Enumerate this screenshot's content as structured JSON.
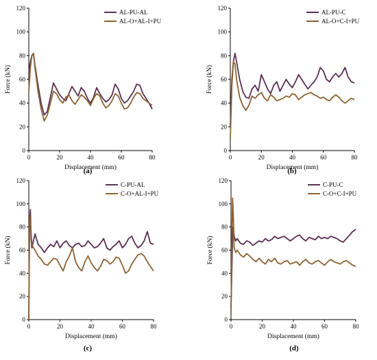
{
  "colors": {
    "series_a": "#5a2e50",
    "series_b": "#8b6232",
    "axis": "#000000",
    "glow": "#f7c9ec"
  },
  "chart_data": [
    {
      "panel": "(a)",
      "type": "line",
      "xlabel": "Displacement (mm)",
      "ylabel": "Force (kN)",
      "xlim": [
        0,
        80
      ],
      "ylim": [
        0,
        120
      ],
      "xticks": [
        0,
        20,
        40,
        60,
        80
      ],
      "yticks": [
        0,
        20,
        40,
        60,
        80,
        100,
        120
      ],
      "legend": "top-right",
      "series": [
        {
          "name": "AL-PU-AL",
          "x": [
            0,
            1,
            2,
            3,
            4,
            6,
            8,
            10,
            12,
            14,
            16,
            18,
            20,
            22,
            24,
            26,
            28,
            30,
            32,
            34,
            36,
            38,
            40,
            42,
            44,
            46,
            48,
            50,
            52,
            54,
            56,
            58,
            60,
            62,
            64,
            66,
            68,
            70,
            72,
            74,
            76,
            78,
            80
          ],
          "y": [
            65,
            75,
            80,
            82,
            72,
            55,
            40,
            30,
            33,
            45,
            57,
            52,
            47,
            44,
            42,
            48,
            54,
            50,
            46,
            53,
            50,
            44,
            40,
            45,
            53,
            48,
            44,
            41,
            43,
            47,
            56,
            52,
            44,
            40,
            42,
            46,
            50,
            56,
            55,
            48,
            44,
            40,
            35
          ]
        },
        {
          "name": "AL-O+AL-I+PU",
          "x": [
            0,
            1,
            2,
            3,
            4,
            6,
            8,
            10,
            12,
            14,
            16,
            18,
            20,
            22,
            24,
            26,
            28,
            30,
            32,
            34,
            36,
            38,
            40,
            42,
            44,
            46,
            48,
            50,
            52,
            54,
            56,
            58,
            60,
            62,
            64,
            66,
            68,
            70,
            72,
            74,
            76,
            78,
            80
          ],
          "y": [
            50,
            70,
            80,
            82,
            70,
            50,
            35,
            25,
            30,
            40,
            50,
            48,
            43,
            40,
            45,
            47,
            42,
            39,
            43,
            47,
            45,
            42,
            38,
            44,
            48,
            46,
            40,
            36,
            38,
            42,
            48,
            46,
            40,
            35,
            36,
            40,
            45,
            49,
            48,
            44,
            42,
            40,
            38
          ]
        }
      ]
    },
    {
      "panel": "(b)",
      "type": "line",
      "xlabel": "Displacement (mm)",
      "ylabel": "Force (kN)",
      "xlim": [
        0,
        80
      ],
      "ylim": [
        0,
        120
      ],
      "xticks": [
        0,
        20,
        40,
        60,
        80
      ],
      "yticks": [
        0,
        20,
        40,
        60,
        80,
        100,
        120
      ],
      "legend": "top-right",
      "series": [
        {
          "name": "AL-PU-C",
          "x": [
            0,
            1,
            2,
            3,
            4,
            6,
            8,
            10,
            12,
            14,
            16,
            18,
            20,
            22,
            24,
            26,
            28,
            30,
            32,
            34,
            36,
            38,
            40,
            42,
            44,
            46,
            48,
            50,
            52,
            54,
            56,
            58,
            60,
            62,
            64,
            66,
            68,
            70,
            72,
            74,
            76,
            78,
            80
          ],
          "y": [
            20,
            60,
            75,
            82,
            75,
            60,
            50,
            45,
            44,
            52,
            55,
            50,
            64,
            58,
            52,
            48,
            55,
            58,
            50,
            55,
            60,
            56,
            53,
            58,
            64,
            60,
            56,
            52,
            55,
            58,
            62,
            70,
            67,
            60,
            58,
            62,
            65,
            62,
            65,
            70,
            62,
            58,
            57
          ]
        },
        {
          "name": "AL-O+C-I+PU",
          "x": [
            0,
            1,
            2,
            3,
            4,
            6,
            8,
            10,
            12,
            14,
            16,
            18,
            20,
            22,
            24,
            26,
            28,
            30,
            32,
            34,
            36,
            38,
            40,
            42,
            44,
            46,
            48,
            50,
            52,
            54,
            56,
            58,
            60,
            62,
            64,
            66,
            68,
            70,
            72,
            74,
            76,
            78,
            80
          ],
          "y": [
            10,
            55,
            75,
            73,
            60,
            45,
            38,
            34,
            38,
            46,
            44,
            47,
            49,
            44,
            42,
            47,
            45,
            42,
            43,
            44,
            46,
            45,
            48,
            47,
            43,
            45,
            47,
            48,
            49,
            47,
            46,
            44,
            45,
            43,
            42,
            45,
            47,
            45,
            42,
            40,
            42,
            44,
            43
          ]
        }
      ]
    },
    {
      "panel": "(c)",
      "type": "line",
      "xlabel": "Displacement (mm)",
      "ylabel": "Force (kN)",
      "xlim": [
        0,
        80
      ],
      "ylim": [
        0,
        120
      ],
      "xticks": [
        0,
        20,
        40,
        60,
        80
      ],
      "yticks": [
        0,
        20,
        40,
        60,
        80,
        100,
        120
      ],
      "legend": "top-right",
      "series": [
        {
          "name": "C-PU-AL",
          "x": [
            0,
            0.5,
            1,
            1.5,
            2,
            3,
            4,
            6,
            8,
            10,
            12,
            14,
            16,
            18,
            20,
            22,
            24,
            26,
            28,
            30,
            32,
            34,
            36,
            38,
            40,
            42,
            44,
            46,
            48,
            50,
            52,
            54,
            56,
            58,
            60,
            62,
            64,
            66,
            68,
            70,
            72,
            74,
            76,
            78,
            80
          ],
          "y": [
            0,
            80,
            95,
            70,
            62,
            68,
            74,
            65,
            62,
            58,
            62,
            65,
            63,
            68,
            62,
            66,
            68,
            64,
            62,
            65,
            66,
            63,
            64,
            68,
            65,
            62,
            63,
            66,
            70,
            62,
            60,
            63,
            65,
            68,
            62,
            65,
            70,
            72,
            66,
            62,
            64,
            68,
            76,
            66,
            65
          ]
        },
        {
          "name": "C-O+AL-I+PU",
          "x": [
            0,
            0.5,
            1,
            1.5,
            2,
            3,
            4,
            6,
            8,
            10,
            12,
            14,
            16,
            18,
            20,
            22,
            24,
            26,
            28,
            30,
            32,
            34,
            36,
            38,
            40,
            42,
            44,
            46,
            48,
            50,
            52,
            54,
            56,
            58,
            60,
            62,
            64,
            66,
            68,
            70,
            72,
            74,
            76,
            78,
            80
          ],
          "y": [
            0,
            90,
            85,
            75,
            65,
            62,
            60,
            55,
            52,
            48,
            47,
            50,
            53,
            52,
            47,
            42,
            50,
            55,
            62,
            50,
            45,
            42,
            50,
            55,
            49,
            45,
            42,
            46,
            52,
            51,
            48,
            50,
            54,
            53,
            47,
            40,
            42,
            48,
            52,
            56,
            57,
            55,
            50,
            46,
            42
          ]
        }
      ]
    },
    {
      "panel": "(d)",
      "type": "line",
      "xlabel": "Displacement (mm)",
      "ylabel": "Force (kN)",
      "xlim": [
        0,
        80
      ],
      "ylim": [
        0,
        120
      ],
      "xticks": [
        0,
        20,
        40,
        60,
        80
      ],
      "yticks": [
        0,
        20,
        40,
        60,
        80,
        100,
        120
      ],
      "legend": "top-right",
      "series": [
        {
          "name": "C-PU-C",
          "x": [
            0,
            0.5,
            1,
            1.5,
            2,
            3,
            4,
            6,
            8,
            10,
            12,
            14,
            16,
            18,
            20,
            22,
            24,
            26,
            28,
            30,
            32,
            34,
            36,
            38,
            40,
            42,
            44,
            46,
            48,
            50,
            52,
            54,
            56,
            58,
            60,
            62,
            64,
            66,
            68,
            70,
            72,
            74,
            76,
            78,
            80
          ],
          "y": [
            10,
            40,
            70,
            80,
            72,
            68,
            70,
            66,
            65,
            68,
            67,
            64,
            66,
            68,
            67,
            70,
            68,
            69,
            72,
            70,
            71,
            72,
            70,
            68,
            70,
            72,
            73,
            70,
            68,
            71,
            70,
            69,
            72,
            70,
            71,
            70,
            72,
            71,
            70,
            68,
            67,
            70,
            73,
            76,
            78
          ]
        },
        {
          "name": "C-O+C-I+PU",
          "x": [
            0,
            0.5,
            1,
            1.5,
            2,
            3,
            4,
            6,
            8,
            10,
            12,
            14,
            16,
            18,
            20,
            22,
            24,
            26,
            28,
            30,
            32,
            34,
            36,
            38,
            40,
            42,
            44,
            46,
            48,
            50,
            52,
            54,
            56,
            58,
            60,
            62,
            64,
            66,
            68,
            70,
            72,
            74,
            76,
            78,
            80
          ],
          "y": [
            5,
            60,
            105,
            90,
            62,
            58,
            60,
            56,
            54,
            57,
            55,
            52,
            50,
            53,
            50,
            48,
            52,
            50,
            53,
            49,
            48,
            50,
            51,
            48,
            49,
            50,
            47,
            50,
            52,
            49,
            48,
            50,
            51,
            49,
            47,
            50,
            52,
            50,
            49,
            48,
            50,
            51,
            49,
            47,
            46
          ]
        }
      ]
    }
  ]
}
